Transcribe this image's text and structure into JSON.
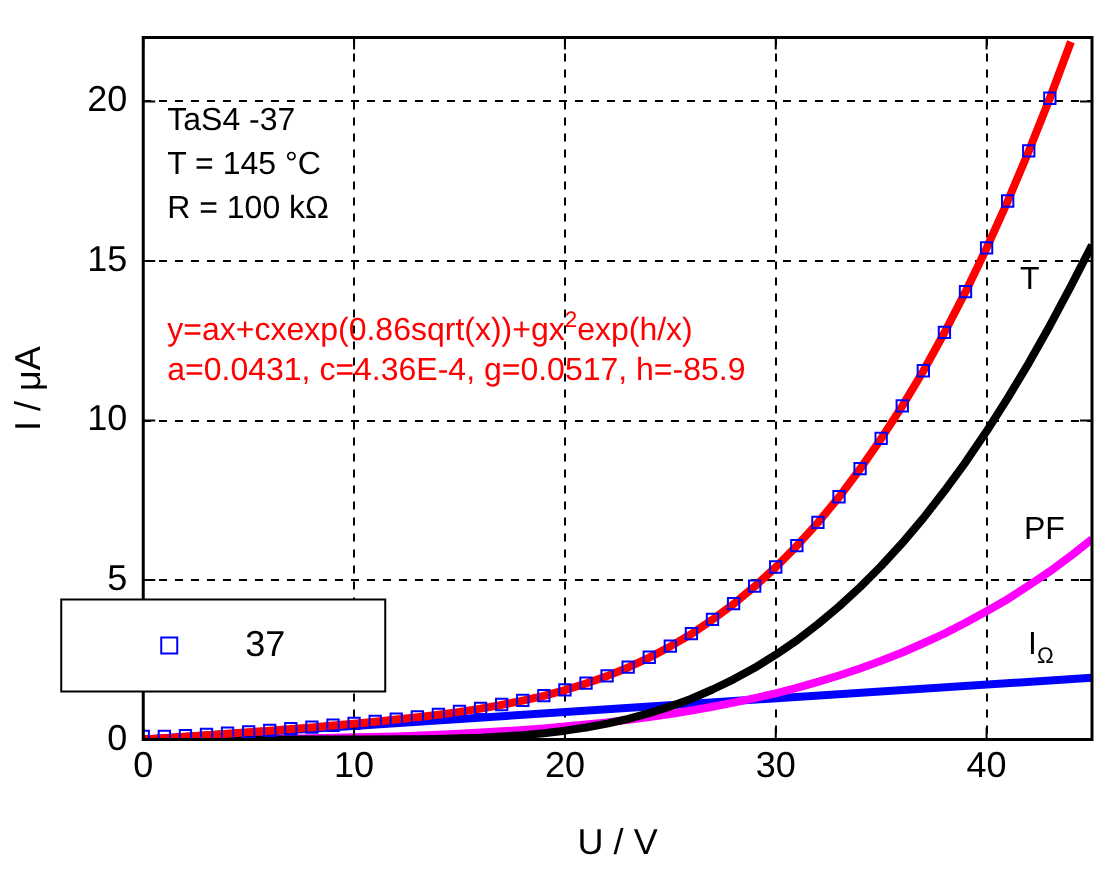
{
  "chart_data": {
    "type": "line",
    "xlabel": "U / V",
    "ylabel": "I / μA",
    "xlim": [
      0,
      45
    ],
    "xticks": [
      0,
      10,
      20,
      30,
      40
    ],
    "ylim": [
      0,
      22
    ],
    "yticks": [
      0,
      5,
      10,
      15,
      20
    ],
    "grid": true,
    "legend": "bottom left",
    "line_style": "solid",
    "annotations": [
      "TaS4 -37",
      "T = 145 °C",
      "R = 100 kΩ",
      "y=ax+cxexp(0.86sqrt(x))+gx$^{2}$exp(h/x)",
      "a=0.0431, c=4.36E-4, g=0.0517, h=-85.9"
    ],
    "series": [
      {
        "name": "37",
        "type": "scatter",
        "marker": "square",
        "color": "#0000ff",
        "x": [
          0,
          1,
          2,
          3,
          4,
          5,
          6,
          7,
          8,
          9,
          10,
          11,
          12,
          13,
          14,
          15,
          16,
          17,
          18,
          19,
          20,
          21,
          22,
          23,
          24,
          25,
          26,
          27,
          28,
          29,
          30,
          31,
          32,
          33,
          34,
          35,
          36,
          37,
          38,
          39,
          40,
          41,
          42,
          43
        ],
        "values": [
          0.1,
          0.1,
          0.12,
          0.16,
          0.2,
          0.24,
          0.29,
          0.34,
          0.39,
          0.45,
          0.51,
          0.57,
          0.64,
          0.71,
          0.79,
          0.88,
          0.98,
          1.1,
          1.23,
          1.38,
          1.56,
          1.77,
          2.0,
          2.27,
          2.58,
          2.93,
          3.32,
          3.77,
          4.26,
          4.81,
          5.41,
          6.08,
          6.81,
          7.61,
          8.49,
          9.44,
          10.46,
          11.56,
          12.76,
          14.04,
          15.41,
          16.88,
          18.45,
          20.1
        ]
      },
      {
        "type": "line",
        "marker": "none",
        "color": "#ff0000",
        "x": [
          0,
          1,
          2,
          3,
          4,
          5,
          6,
          7,
          8,
          9,
          10,
          11,
          12,
          13,
          14,
          15,
          16,
          17,
          18,
          19,
          20,
          21,
          22,
          23,
          24,
          25,
          26,
          27,
          28,
          29,
          30,
          31,
          32,
          33,
          34,
          35,
          36,
          37,
          38,
          39,
          40,
          41,
          42,
          43,
          44
        ],
        "values": [
          0,
          0.04,
          0.09,
          0.14,
          0.18,
          0.23,
          0.28,
          0.33,
          0.38,
          0.44,
          0.5,
          0.56,
          0.63,
          0.7,
          0.78,
          0.87,
          0.97,
          1.09,
          1.22,
          1.37,
          1.55,
          1.76,
          1.99,
          2.26,
          2.57,
          2.92,
          3.31,
          3.76,
          4.25,
          4.8,
          5.4,
          6.07,
          6.8,
          7.6,
          8.48,
          9.43,
          10.45,
          11.55,
          12.75,
          14.03,
          15.4,
          16.87,
          18.44,
          20.1,
          21.87
        ]
      },
      {
        "name": "T",
        "type": "line",
        "marker": "none",
        "color": "#000000",
        "x": [
          0,
          8,
          10,
          11,
          12,
          13,
          14,
          15,
          16,
          17,
          18,
          19,
          20,
          21,
          22,
          23,
          24,
          25,
          26,
          27,
          28,
          29,
          30,
          31,
          32,
          33,
          34,
          35,
          36,
          37,
          38,
          39,
          40,
          41,
          42,
          43,
          44,
          45
        ],
        "values": [
          0,
          0,
          0.0,
          0.0,
          0.01,
          0.01,
          0.02,
          0.04,
          0.06,
          0.1,
          0.14,
          0.2,
          0.28,
          0.38,
          0.5,
          0.65,
          0.83,
          1.04,
          1.28,
          1.57,
          1.89,
          2.25,
          2.66,
          3.11,
          3.62,
          4.17,
          4.78,
          5.44,
          6.16,
          6.94,
          7.79,
          8.69,
          9.66,
          10.7,
          11.8,
          12.97,
          14.21,
          15.5
        ]
      },
      {
        "name": "PF",
        "type": "line",
        "marker": "none",
        "color": "#ff00ff",
        "x": [
          0,
          3,
          6,
          8,
          10,
          12,
          14,
          15,
          16,
          17,
          18,
          19,
          20,
          21,
          22,
          23,
          24,
          25,
          26,
          27,
          28,
          29,
          30,
          31,
          32,
          33,
          34,
          35,
          36,
          37,
          38,
          39,
          40,
          41,
          42,
          43,
          44,
          45
        ],
        "values": [
          0,
          0.01,
          0.02,
          0.04,
          0.07,
          0.1,
          0.15,
          0.18,
          0.22,
          0.26,
          0.3,
          0.35,
          0.41,
          0.47,
          0.54,
          0.62,
          0.71,
          0.8,
          0.91,
          1.03,
          1.16,
          1.3,
          1.45,
          1.62,
          1.81,
          2.01,
          2.23,
          2.47,
          2.73,
          3.02,
          3.32,
          3.66,
          4.02,
          4.4,
          4.83,
          5.27,
          5.76,
          6.28
        ]
      },
      {
        "name": "I$_{Ω}$",
        "type": "line",
        "marker": "none",
        "color": "#0000ff",
        "x": [
          0,
          45
        ],
        "values": [
          0,
          1.94
        ]
      }
    ]
  }
}
